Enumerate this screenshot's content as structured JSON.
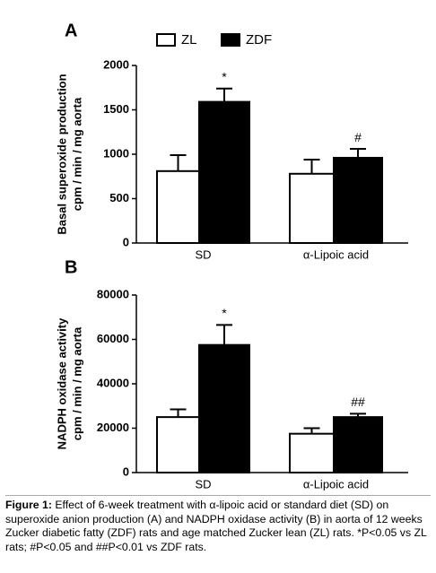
{
  "chart_data": [
    {
      "type": "bar",
      "panel": "A",
      "ylabel": [
        "Basal superoxide production",
        "cpm / min / mg aorta"
      ],
      "categories": [
        "SD",
        "α-Lipoic acid"
      ],
      "series": [
        {
          "name": "ZL",
          "color": "#ffffff",
          "values": [
            810,
            780
          ],
          "errors": [
            180,
            160
          ]
        },
        {
          "name": "ZDF",
          "color": "#000000",
          "values": [
            1590,
            960
          ],
          "errors": [
            150,
            100
          ],
          "markers": [
            "*",
            "#"
          ]
        }
      ],
      "ylim": [
        0,
        2000
      ],
      "yticks": [
        0,
        500,
        1000,
        1500,
        2000
      ],
      "legend": "top"
    },
    {
      "type": "bar",
      "panel": "B",
      "ylabel": [
        "NADPH oxidase activity",
        "cpm / min / mg aorta"
      ],
      "categories": [
        "SD",
        "α-Lipoic acid"
      ],
      "series": [
        {
          "name": "ZL",
          "color": "#ffffff",
          "values": [
            25000,
            17500
          ],
          "errors": [
            3500,
            2500
          ]
        },
        {
          "name": "ZDF",
          "color": "#000000",
          "values": [
            57500,
            25000
          ],
          "errors": [
            9000,
            1500
          ],
          "markers": [
            "*",
            "##"
          ]
        }
      ],
      "ylim": [
        0,
        80000
      ],
      "yticks": [
        0,
        20000,
        40000,
        60000,
        80000
      ]
    }
  ],
  "caption": {
    "label": "Figure 1:",
    "text": "Effect of 6-week treatment with α-lipoic acid or standard diet (SD) on superoxide anion production (A) and NADPH oxidase activity (B) in aorta of 12 weeks Zucker diabetic fatty (ZDF) rats and age matched Zucker lean (ZL) rats. *P<0.05 vs ZL rats; #P<0.05 and ##P<0.01 vs ZDF rats."
  }
}
